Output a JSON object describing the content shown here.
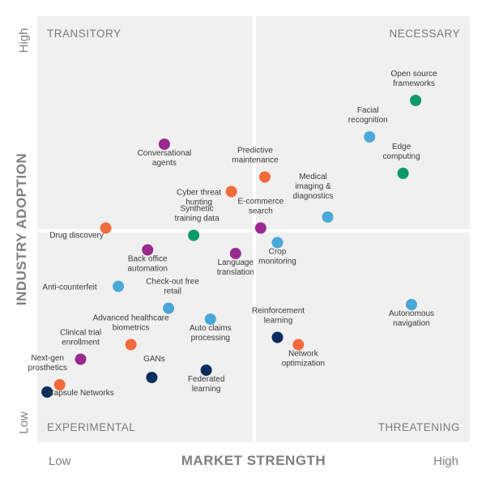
{
  "chart_data": {
    "type": "scatter",
    "xlabel": "MARKET STRENGTH",
    "ylabel": "INDUSTRY ADOPTION",
    "x_ticks": [
      "Low",
      "High"
    ],
    "y_ticks": [
      "Low",
      "High"
    ],
    "xlim": [
      0,
      10
    ],
    "ylim": [
      0,
      10
    ],
    "quadrants": {
      "top_left": "TRANSITORY",
      "top_right": "NECESSARY",
      "bottom_left": "EXPERIMENTAL",
      "bottom_right": "THREATENING"
    },
    "colors": {
      "purple": "#9b2a8e",
      "orange": "#f26b3a",
      "blue": "#4aa8d8",
      "green": "#0a9a6a",
      "navy": "#0c2d5e",
      "background": "#f0f0f0"
    },
    "points": [
      {
        "label": [
          "Open source",
          "frameworks"
        ],
        "x": 8.9,
        "y": 8.6,
        "color": "green"
      },
      {
        "label": [
          "Facial",
          "recognition"
        ],
        "x": 7.8,
        "y": 7.6,
        "color": "blue"
      },
      {
        "label": [
          "Edge",
          "computing"
        ],
        "x": 8.6,
        "y": 6.6,
        "color": "green"
      },
      {
        "label": [
          "Conversational",
          "agents"
        ],
        "x": 2.9,
        "y": 7.4,
        "color": "purple"
      },
      {
        "label": [
          "Predictive",
          "maintenance"
        ],
        "x": 5.3,
        "y": 6.5,
        "color": "orange"
      },
      {
        "label": [
          "Cyber threat",
          "hunting"
        ],
        "x": 4.5,
        "y": 6.1,
        "color": "orange"
      },
      {
        "label": [
          "Medical",
          "imaging &",
          "diagnostics"
        ],
        "x": 6.8,
        "y": 5.4,
        "color": "blue"
      },
      {
        "label": [
          "E-commerce",
          "search"
        ],
        "x": 5.2,
        "y": 5.1,
        "color": "purple"
      },
      {
        "label": [
          "Synthetic",
          "training data"
        ],
        "x": 3.6,
        "y": 4.9,
        "color": "green"
      },
      {
        "label": [
          "Drug discovery"
        ],
        "x": 1.5,
        "y": 5.1,
        "color": "orange"
      },
      {
        "label": [
          "Crop",
          "monitoring"
        ],
        "x": 5.6,
        "y": 4.7,
        "color": "blue"
      },
      {
        "label": [
          "Back office",
          "automation"
        ],
        "x": 2.5,
        "y": 4.5,
        "color": "purple"
      },
      {
        "label": [
          "Language",
          "translation"
        ],
        "x": 4.6,
        "y": 4.4,
        "color": "purple"
      },
      {
        "label": [
          "Anti-counterfeit"
        ],
        "x": 1.8,
        "y": 3.5,
        "color": "blue"
      },
      {
        "label": [
          "Check-out free",
          "retail"
        ],
        "x": 3.0,
        "y": 2.9,
        "color": "blue"
      },
      {
        "label": [
          "Autonomous",
          "navigation"
        ],
        "x": 8.8,
        "y": 3.0,
        "color": "blue"
      },
      {
        "label": [
          "Auto claims",
          "processing"
        ],
        "x": 4.0,
        "y": 2.6,
        "color": "blue"
      },
      {
        "label": [
          "Reinforcement",
          "learning"
        ],
        "x": 5.6,
        "y": 2.1,
        "color": "navy"
      },
      {
        "label": [
          "Advanced healthcare",
          "biometrics"
        ],
        "x": 2.1,
        "y": 1.9,
        "color": "orange"
      },
      {
        "label": [
          "Network",
          "optimization"
        ],
        "x": 6.1,
        "y": 1.9,
        "color": "orange"
      },
      {
        "label": [
          "Clinical trial",
          "enrollment"
        ],
        "x": 0.9,
        "y": 1.5,
        "color": "purple"
      },
      {
        "label": [
          "GANs"
        ],
        "x": 2.6,
        "y": 1.0,
        "color": "navy"
      },
      {
        "label": [
          "Federated",
          "learning"
        ],
        "x": 3.9,
        "y": 1.2,
        "color": "navy"
      },
      {
        "label": [
          "Next-gen",
          "prosthetics"
        ],
        "x": 0.4,
        "y": 0.8,
        "color": "orange"
      },
      {
        "label": [
          "Capsule Networks"
        ],
        "x": 0.1,
        "y": 0.6,
        "color": "navy"
      }
    ]
  }
}
